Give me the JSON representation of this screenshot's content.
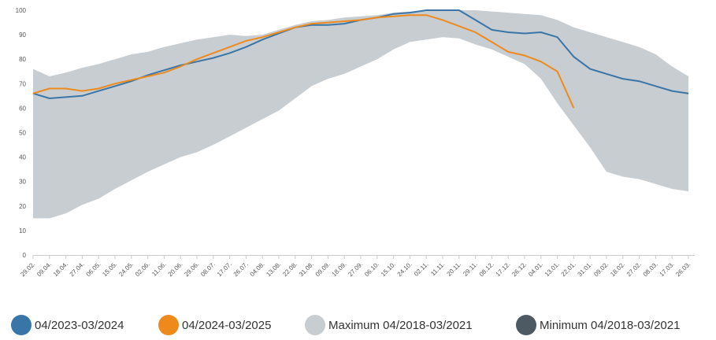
{
  "chart_data": {
    "type": "line",
    "categories": [
      "29.02.",
      "09.04.",
      "18.04.",
      "27.04.",
      "06.05.",
      "15.05.",
      "24.05.",
      "02.06.",
      "11.06.",
      "20.06.",
      "29.06.",
      "08.07.",
      "17.07.",
      "26.07.",
      "04.08.",
      "13.08.",
      "22.08.",
      "31.08.",
      "09.09.",
      "18.09.",
      "27.09.",
      "06.10.",
      "15.10.",
      "24.10.",
      "02.11.",
      "11.11.",
      "20.11.",
      "29.11.",
      "08.12.",
      "17.12.",
      "26.12.",
      "04.01.",
      "13.01.",
      "22.01.",
      "31.01.",
      "09.02.",
      "18.02.",
      "27.02.",
      "08.03.",
      "17.03.",
      "26.03."
    ],
    "series": [
      {
        "name": "04/2023-03/2024",
        "color": "#3a75a8",
        "values": [
          66,
          64,
          64.5,
          65,
          67,
          69,
          71,
          73.5,
          75.5,
          77.5,
          79,
          80.5,
          82.5,
          85,
          88,
          90.5,
          93,
          94,
          94,
          94.5,
          96,
          97,
          98.5,
          99,
          100,
          100,
          100,
          96,
          92,
          91,
          90.5,
          91,
          89,
          81,
          76,
          74,
          72,
          71,
          69,
          67,
          66
        ]
      },
      {
        "name": "04/2024-03/2025",
        "color": "#ee8a1c",
        "values": [
          66,
          68,
          68,
          67,
          68,
          70,
          71.5,
          73,
          74.5,
          77,
          80,
          82.5,
          85,
          87.5,
          89,
          91,
          93,
          94.5,
          95,
          95.5,
          96,
          97,
          97.5,
          98,
          98,
          96,
          93.5,
          91,
          87,
          83,
          81.5,
          79,
          75,
          60,
          null,
          null,
          null,
          null,
          null,
          null,
          null
        ]
      },
      {
        "name": "Maximum 04/2018-03/2021",
        "color": "#c8cdd1",
        "values": [
          76,
          73,
          74.5,
          76.5,
          78,
          80,
          82,
          83,
          85,
          86.5,
          88,
          89,
          90,
          89.5,
          90,
          92,
          94,
          95.5,
          96,
          97,
          97.5,
          98,
          99,
          99.5,
          100,
          100,
          100,
          100,
          99.5,
          99,
          98.5,
          98,
          96,
          93,
          91,
          89,
          87,
          85,
          82,
          77,
          73
        ]
      },
      {
        "name": "Minimum 04/2018-03/2021",
        "color": "#4d5a63",
        "values": [
          15,
          15,
          17,
          20.5,
          23,
          27,
          30.5,
          34,
          37,
          40,
          42,
          45,
          48.5,
          52,
          55.5,
          59,
          64,
          69,
          72,
          74,
          77,
          80,
          84,
          87,
          88,
          89,
          88.5,
          86,
          84,
          81,
          78,
          72,
          62,
          53,
          44,
          34,
          32,
          31,
          29,
          27,
          26
        ]
      }
    ],
    "ylim": [
      0,
      100
    ],
    "yticks": [
      0,
      10,
      20,
      30,
      40,
      50,
      60,
      70,
      80,
      90,
      100
    ],
    "grid": false,
    "legend": "bottom"
  }
}
